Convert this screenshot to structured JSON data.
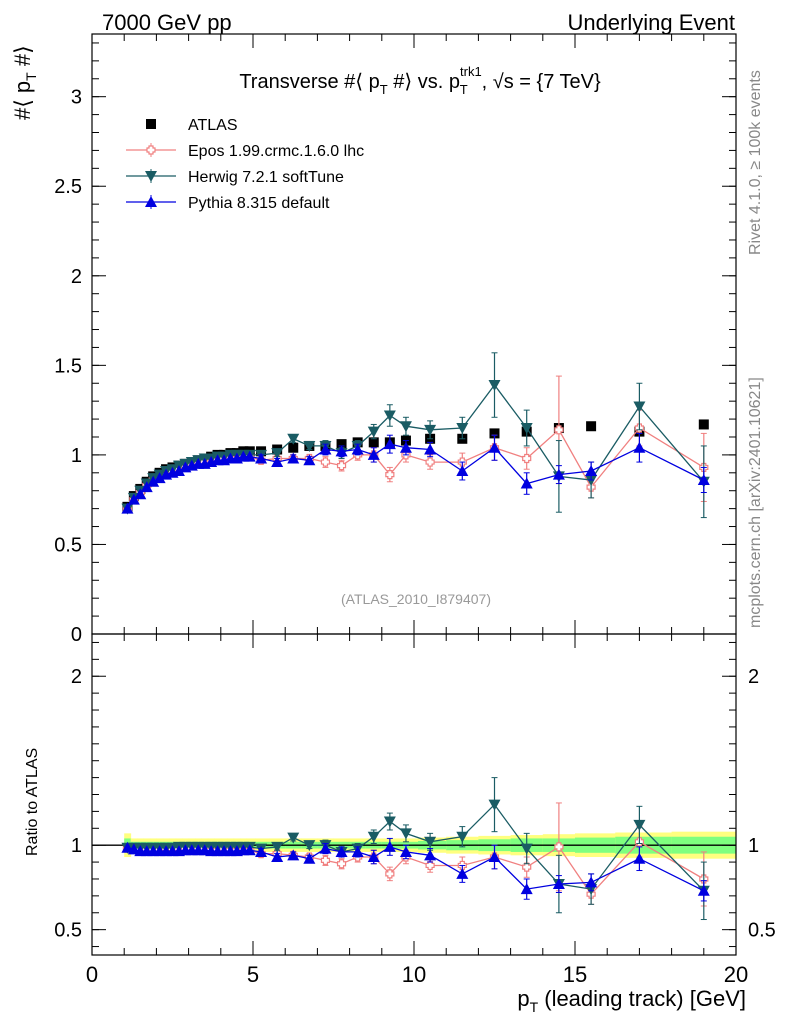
{
  "header": {
    "left": "7000 GeV pp",
    "right": "Underlying Event"
  },
  "side_labels": {
    "rivet": "Rivet 4.1.0, ≥ 100k events",
    "mcplots": "mcplots.cern.ch [arXiv:2401.10621]"
  },
  "colors": {
    "ATLAS": "#000000",
    "Epos": "#f08080",
    "Herwig": "#1a5c64",
    "Pythia": "#0000e0",
    "band_inner": "#7fff7f",
    "band_outer": "#ffff7f"
  },
  "chart_data": [
    {
      "type": "scatter",
      "title": "Transverse #⟨ p_T #⟩ vs. p_T^trk1, √s = {7 TeV}",
      "title_parts": {
        "pre": "Transverse #⟨ p",
        "sub1": "T",
        "mid": " #⟩ vs. p",
        "sup": "trk1",
        "sub2": "T",
        "post": ", √s = {7 TeV}"
      },
      "ylabel": "#⟨ p_T #⟩",
      "ylabel_parts": {
        "pre": "#⟨ p",
        "sub": "T",
        "post": " #⟩"
      },
      "xlabel": "",
      "xlim": [
        0,
        20
      ],
      "ylim": [
        0,
        3.35
      ],
      "yticks": [
        0,
        0.5,
        1,
        1.5,
        2,
        2.5,
        3
      ],
      "ytick_labels": [
        "0",
        "0.5",
        "1",
        "1.5",
        "2",
        "2.5",
        "3"
      ],
      "watermark": "(ATLAS_2010_I879407)",
      "legend_position": "top-left",
      "x": [
        1.1,
        1.3,
        1.5,
        1.7,
        1.9,
        2.1,
        2.3,
        2.5,
        2.7,
        2.9,
        3.1,
        3.3,
        3.5,
        3.7,
        3.9,
        4.1,
        4.3,
        4.5,
        4.7,
        4.9,
        5.25,
        5.75,
        6.25,
        6.75,
        7.25,
        7.75,
        8.25,
        8.75,
        9.25,
        9.75,
        10.5,
        11.5,
        12.5,
        13.5,
        14.5,
        15.5,
        17.0,
        19.0
      ],
      "series": [
        {
          "name": "ATLAS",
          "marker": "square",
          "values": [
            0.71,
            0.77,
            0.81,
            0.85,
            0.88,
            0.9,
            0.92,
            0.93,
            0.94,
            0.95,
            0.96,
            0.97,
            0.98,
            0.99,
            1.0,
            1.0,
            1.01,
            1.01,
            1.02,
            1.02,
            1.02,
            1.03,
            1.04,
            1.05,
            1.05,
            1.06,
            1.07,
            1.07,
            1.07,
            1.08,
            1.09,
            1.09,
            1.12,
            1.13,
            1.15,
            1.16,
            1.13,
            1.17
          ],
          "errors": [
            0.01,
            0.01,
            0.01,
            0.01,
            0.01,
            0.01,
            0.01,
            0.01,
            0.01,
            0.01,
            0.01,
            0.01,
            0.01,
            0.01,
            0.01,
            0.01,
            0.01,
            0.01,
            0.01,
            0.01,
            0.01,
            0.01,
            0.01,
            0.01,
            0.01,
            0.01,
            0.01,
            0.01,
            0.01,
            0.01,
            0.01,
            0.01,
            0.02,
            0.02,
            0.02,
            0.02,
            0.02,
            0.02
          ]
        },
        {
          "name": "Epos 1.99.crmc.1.6.0 lhc",
          "marker": "open-cross",
          "values": [
            0.7,
            0.75,
            0.79,
            0.83,
            0.86,
            0.88,
            0.9,
            0.91,
            0.92,
            0.93,
            0.94,
            0.95,
            0.96,
            0.96,
            0.97,
            0.98,
            0.98,
            0.98,
            0.99,
            0.99,
            0.97,
            0.98,
            0.98,
            0.98,
            0.96,
            0.94,
            1.0,
            1.0,
            0.89,
            1.0,
            0.96,
            0.96,
            1.04,
            0.98,
            1.14,
            0.82,
            1.15,
            0.93
          ],
          "errors": [
            0.01,
            0.01,
            0.01,
            0.01,
            0.01,
            0.01,
            0.01,
            0.01,
            0.01,
            0.01,
            0.01,
            0.01,
            0.01,
            0.01,
            0.01,
            0.01,
            0.01,
            0.01,
            0.01,
            0.01,
            0.02,
            0.02,
            0.02,
            0.02,
            0.03,
            0.03,
            0.03,
            0.04,
            0.04,
            0.04,
            0.04,
            0.05,
            0.07,
            0.06,
            0.3,
            0.06,
            0.1,
            0.19
          ]
        },
        {
          "name": "Herwig 7.2.1 softTune",
          "marker": "triangle-down",
          "values": [
            0.7,
            0.76,
            0.8,
            0.84,
            0.87,
            0.89,
            0.91,
            0.92,
            0.94,
            0.95,
            0.96,
            0.97,
            0.98,
            0.98,
            0.99,
            0.99,
            1.0,
            1.0,
            1.0,
            1.0,
            1.0,
            1.01,
            1.09,
            1.05,
            1.05,
            1.01,
            1.05,
            1.13,
            1.22,
            1.16,
            1.14,
            1.15,
            1.39,
            1.15,
            0.88,
            0.86,
            1.27,
            0.85
          ],
          "errors": [
            0.01,
            0.01,
            0.01,
            0.01,
            0.01,
            0.01,
            0.01,
            0.01,
            0.01,
            0.01,
            0.01,
            0.01,
            0.01,
            0.01,
            0.01,
            0.01,
            0.01,
            0.01,
            0.01,
            0.01,
            0.02,
            0.02,
            0.02,
            0.02,
            0.03,
            0.03,
            0.03,
            0.04,
            0.06,
            0.05,
            0.05,
            0.06,
            0.18,
            0.1,
            0.2,
            0.1,
            0.13,
            0.2
          ]
        },
        {
          "name": "Pythia 8.315 default",
          "marker": "triangle-up",
          "values": [
            0.7,
            0.75,
            0.78,
            0.82,
            0.85,
            0.87,
            0.89,
            0.9,
            0.91,
            0.93,
            0.94,
            0.95,
            0.95,
            0.96,
            0.97,
            0.97,
            0.98,
            0.98,
            0.99,
            0.99,
            0.98,
            0.96,
            0.98,
            0.97,
            1.03,
            1.02,
            1.03,
            1.0,
            1.06,
            1.04,
            1.03,
            0.91,
            1.04,
            0.84,
            0.89,
            0.91,
            1.04,
            0.86
          ],
          "errors": [
            0.01,
            0.01,
            0.01,
            0.01,
            0.01,
            0.01,
            0.01,
            0.01,
            0.01,
            0.01,
            0.01,
            0.01,
            0.01,
            0.01,
            0.01,
            0.01,
            0.01,
            0.01,
            0.01,
            0.01,
            0.02,
            0.02,
            0.02,
            0.02,
            0.03,
            0.03,
            0.03,
            0.04,
            0.05,
            0.04,
            0.04,
            0.05,
            0.07,
            0.06,
            0.05,
            0.05,
            0.08,
            0.07
          ]
        }
      ]
    },
    {
      "type": "scatter",
      "title": "",
      "ylabel": "Ratio to ATLAS",
      "xlabel": "p_T (leading track) [GeV]",
      "xlabel_parts": {
        "pre": "p",
        "sub": "T",
        "post": " (leading track) [GeV]"
      },
      "xlim": [
        0,
        20
      ],
      "ylim": [
        0.35,
        2.25
      ],
      "yticks": [
        0.5,
        1,
        2
      ],
      "ytick_labels": [
        "0.5",
        "1",
        "2"
      ],
      "xticks": [
        0,
        5,
        10,
        15,
        20
      ],
      "xtick_labels": [
        "0",
        "5",
        "10",
        "15",
        "20"
      ],
      "reference_line": 1,
      "band_inner_halfwidth": [
        0.04,
        0.02,
        0.02,
        0.02,
        0.02,
        0.02,
        0.02,
        0.02,
        0.02,
        0.02,
        0.02,
        0.02,
        0.02,
        0.02,
        0.02,
        0.02,
        0.02,
        0.02,
        0.02,
        0.02,
        0.02,
        0.02,
        0.02,
        0.02,
        0.02,
        0.02,
        0.02,
        0.02,
        0.02,
        0.02,
        0.025,
        0.03,
        0.035,
        0.04,
        0.04,
        0.045,
        0.05,
        0.05
      ],
      "band_outer_halfwidth": [
        0.07,
        0.04,
        0.04,
        0.04,
        0.04,
        0.04,
        0.04,
        0.04,
        0.04,
        0.04,
        0.04,
        0.04,
        0.04,
        0.04,
        0.04,
        0.04,
        0.04,
        0.04,
        0.04,
        0.04,
        0.04,
        0.04,
        0.04,
        0.04,
        0.04,
        0.04,
        0.04,
        0.04,
        0.04,
        0.04,
        0.045,
        0.05,
        0.055,
        0.06,
        0.065,
        0.07,
        0.075,
        0.08
      ],
      "series": [
        {
          "name": "Epos 1.99.crmc.1.6.0 lhc",
          "marker": "open-cross",
          "values": [
            0.985,
            0.975,
            0.975,
            0.975,
            0.975,
            0.975,
            0.98,
            0.98,
            0.98,
            0.98,
            0.98,
            0.98,
            0.98,
            0.97,
            0.97,
            0.98,
            0.97,
            0.97,
            0.97,
            0.97,
            0.95,
            0.95,
            0.94,
            0.93,
            0.91,
            0.89,
            0.93,
            0.93,
            0.83,
            0.93,
            0.88,
            0.88,
            0.93,
            0.87,
            0.99,
            0.71,
            1.02,
            0.8
          ],
          "errors": [
            0.01,
            0.01,
            0.01,
            0.01,
            0.01,
            0.01,
            0.01,
            0.01,
            0.01,
            0.01,
            0.01,
            0.01,
            0.01,
            0.01,
            0.01,
            0.01,
            0.01,
            0.01,
            0.01,
            0.01,
            0.02,
            0.02,
            0.02,
            0.02,
            0.03,
            0.03,
            0.03,
            0.04,
            0.04,
            0.04,
            0.04,
            0.05,
            0.07,
            0.06,
            0.26,
            0.06,
            0.09,
            0.16
          ]
        },
        {
          "name": "Herwig 7.2.1 softTune",
          "marker": "triangle-down",
          "values": [
            0.985,
            0.985,
            0.985,
            0.985,
            0.985,
            0.985,
            0.985,
            0.985,
            0.99,
            0.99,
            0.99,
            0.99,
            0.99,
            0.99,
            0.99,
            0.99,
            0.99,
            0.99,
            0.99,
            0.99,
            0.98,
            0.99,
            1.045,
            1.0,
            1.0,
            0.96,
            0.98,
            1.05,
            1.14,
            1.07,
            1.02,
            1.05,
            1.24,
            0.98,
            0.77,
            0.74,
            1.12,
            0.73
          ],
          "errors": [
            0.01,
            0.01,
            0.01,
            0.01,
            0.01,
            0.01,
            0.01,
            0.01,
            0.01,
            0.01,
            0.01,
            0.01,
            0.01,
            0.01,
            0.01,
            0.01,
            0.01,
            0.01,
            0.01,
            0.01,
            0.02,
            0.02,
            0.02,
            0.02,
            0.03,
            0.03,
            0.03,
            0.04,
            0.05,
            0.05,
            0.05,
            0.06,
            0.16,
            0.09,
            0.17,
            0.09,
            0.11,
            0.17
          ]
        },
        {
          "name": "Pythia 8.315 default",
          "marker": "triangle-up",
          "values": [
            0.985,
            0.975,
            0.965,
            0.965,
            0.965,
            0.965,
            0.965,
            0.965,
            0.965,
            0.97,
            0.97,
            0.97,
            0.97,
            0.965,
            0.965,
            0.965,
            0.965,
            0.965,
            0.97,
            0.97,
            0.96,
            0.93,
            0.94,
            0.92,
            0.98,
            0.96,
            0.96,
            0.93,
            0.99,
            0.96,
            0.94,
            0.83,
            0.93,
            0.74,
            0.77,
            0.78,
            0.92,
            0.73
          ],
          "errors": [
            0.01,
            0.01,
            0.01,
            0.01,
            0.01,
            0.01,
            0.01,
            0.01,
            0.01,
            0.01,
            0.01,
            0.01,
            0.01,
            0.01,
            0.01,
            0.01,
            0.01,
            0.01,
            0.01,
            0.01,
            0.02,
            0.02,
            0.02,
            0.02,
            0.03,
            0.03,
            0.03,
            0.04,
            0.05,
            0.04,
            0.04,
            0.05,
            0.07,
            0.06,
            0.05,
            0.05,
            0.07,
            0.06
          ]
        }
      ]
    }
  ]
}
